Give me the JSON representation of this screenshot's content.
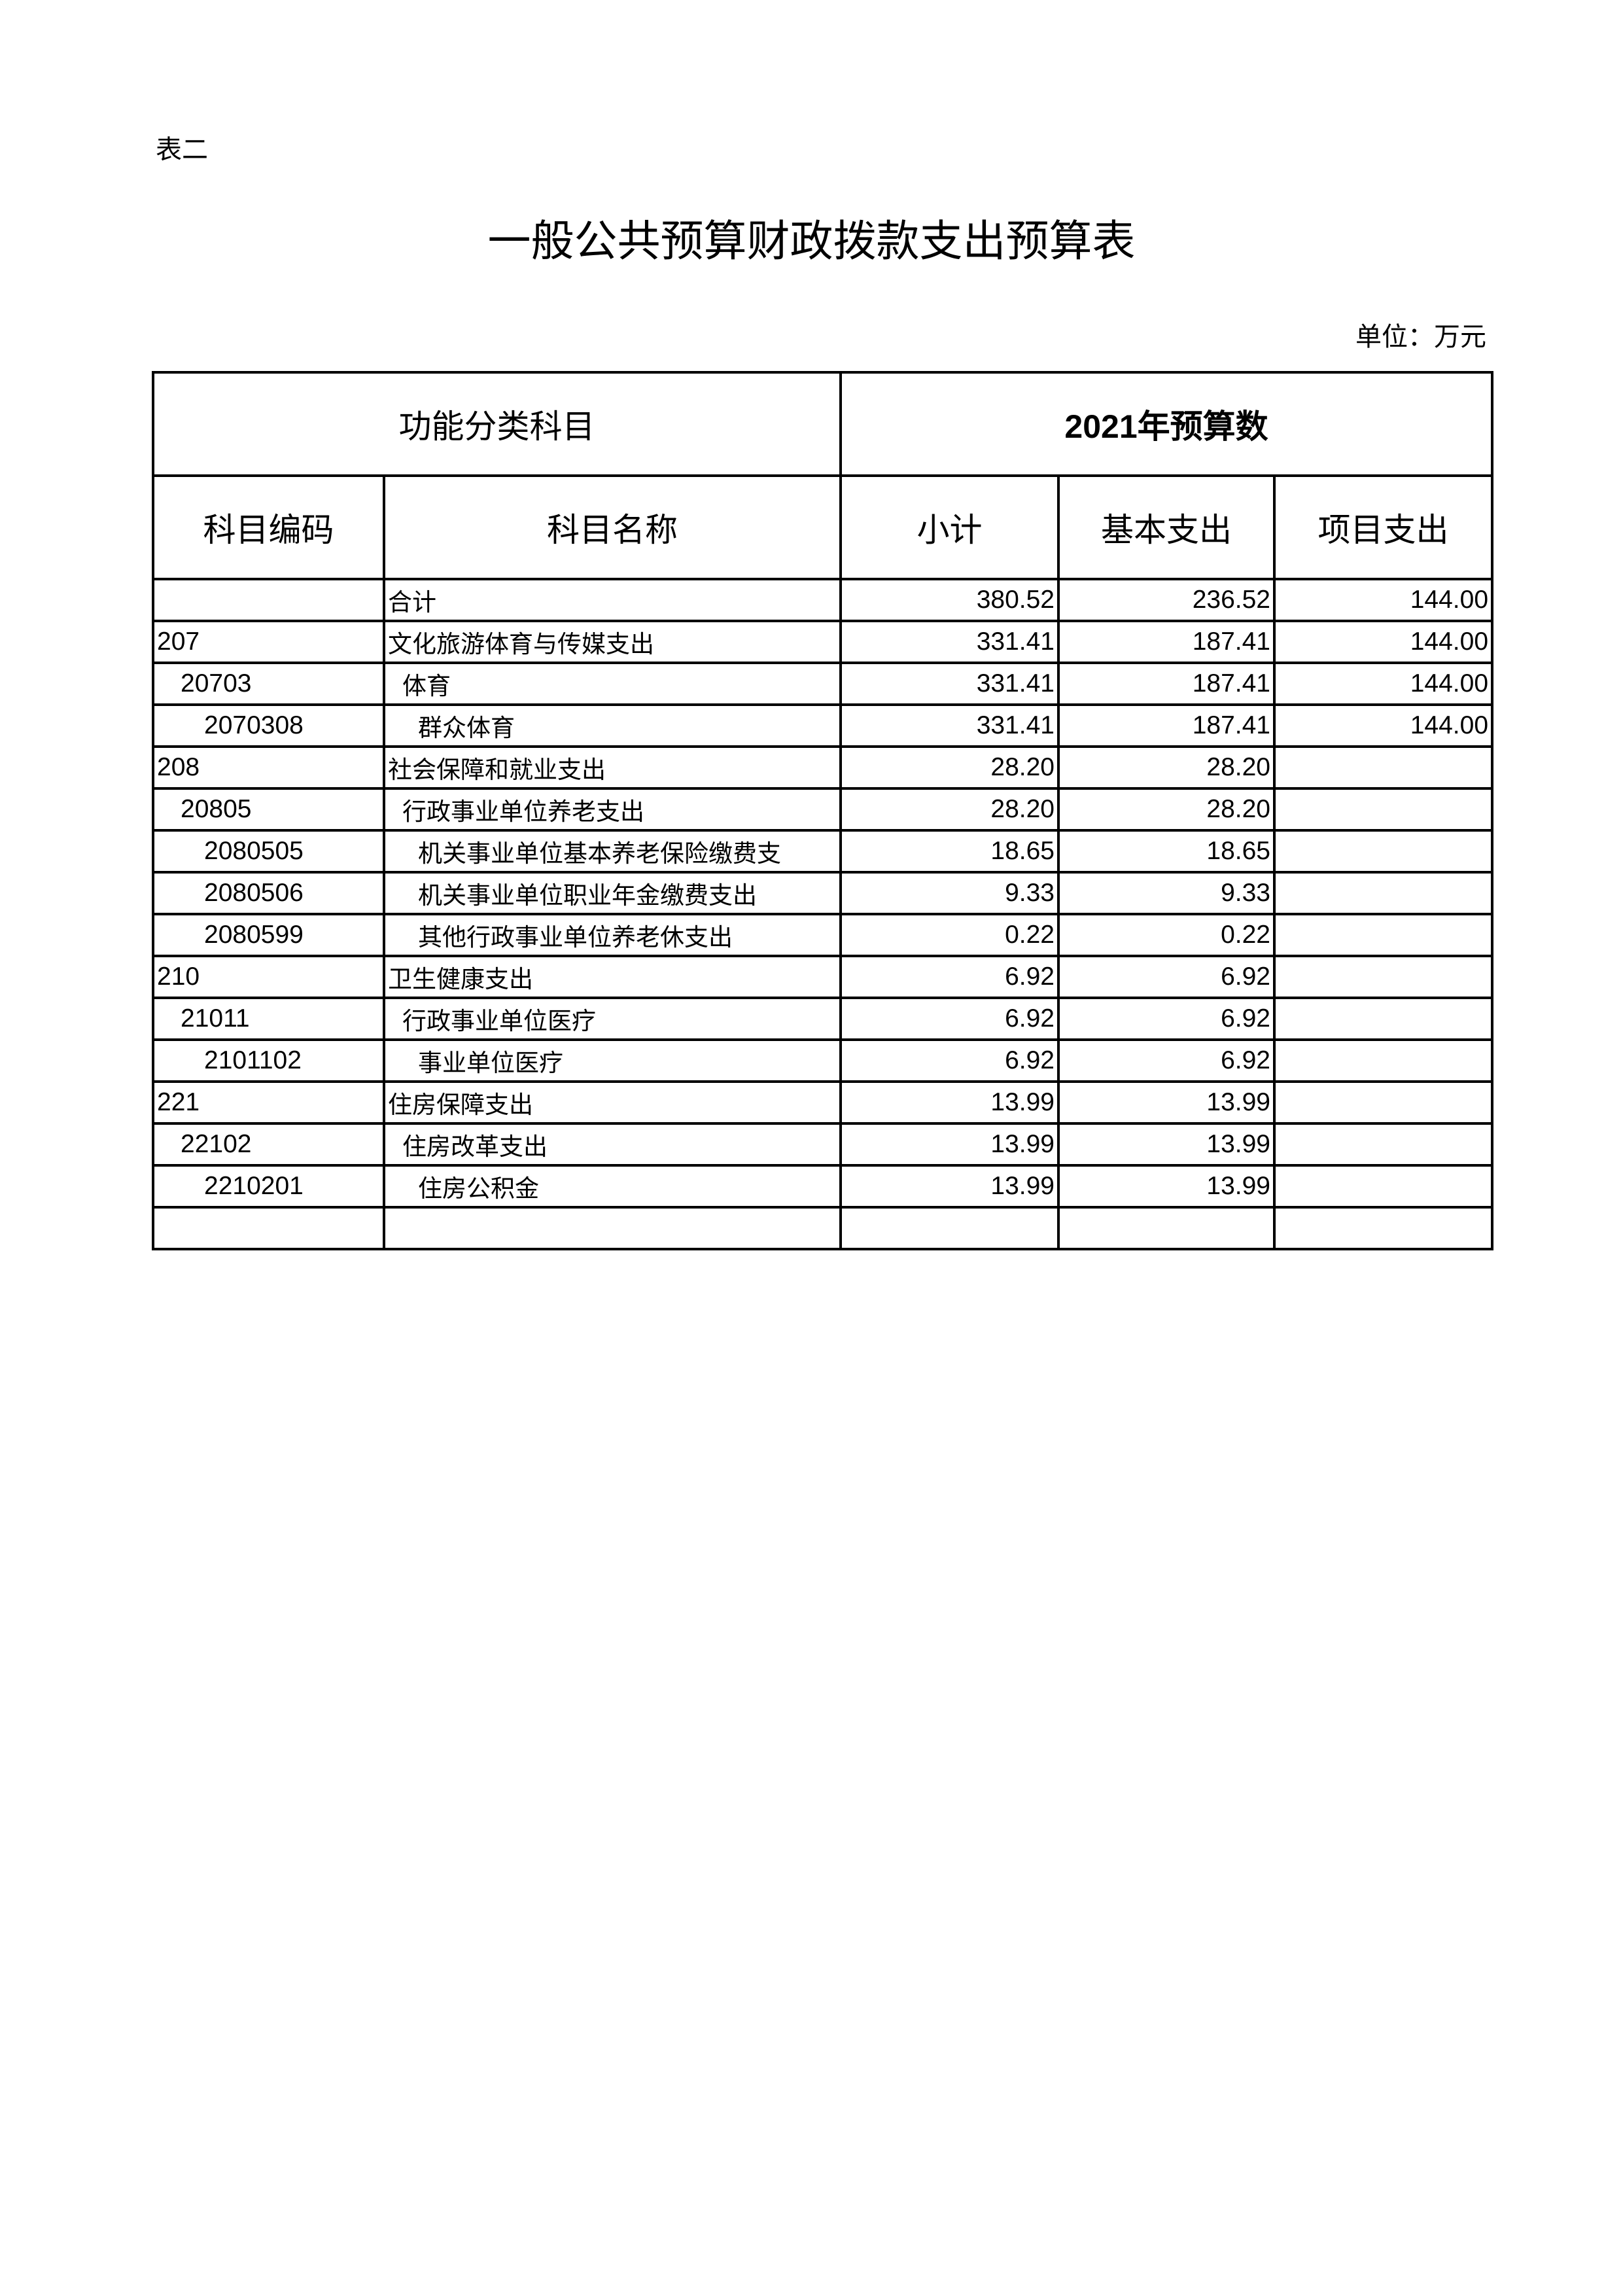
{
  "table_no": "表二",
  "title": "一般公共预算财政拨款支出预算表",
  "unit": "单位：万元",
  "header": {
    "group1": "功能分类科目",
    "group2": "2021年预算数",
    "code": "科目编码",
    "name": "科目名称",
    "subtotal": "小计",
    "basic": "基本支出",
    "project": "项目支出"
  },
  "rows": [
    {
      "code": "",
      "name": "合计",
      "subtotal": "380.52",
      "basic": "236.52",
      "project": "144.00",
      "level": 1
    },
    {
      "code": "207",
      "name": "文化旅游体育与传媒支出",
      "subtotal": "331.41",
      "basic": "187.41",
      "project": "144.00",
      "level": 1
    },
    {
      "code": "20703",
      "name": "体育",
      "subtotal": "331.41",
      "basic": "187.41",
      "project": "144.00",
      "level": 2
    },
    {
      "code": "2070308",
      "name": "群众体育",
      "subtotal": "331.41",
      "basic": "187.41",
      "project": "144.00",
      "level": 3
    },
    {
      "code": "208",
      "name": "社会保障和就业支出",
      "subtotal": "28.20",
      "basic": "28.20",
      "project": "",
      "level": 1
    },
    {
      "code": "20805",
      "name": "行政事业单位养老支出",
      "subtotal": "28.20",
      "basic": "28.20",
      "project": "",
      "level": 2
    },
    {
      "code": "2080505",
      "name": "机关事业单位基本养老保险缴费支",
      "subtotal": "18.65",
      "basic": "18.65",
      "project": "",
      "level": 3
    },
    {
      "code": "2080506",
      "name": "机关事业单位职业年金缴费支出",
      "subtotal": "9.33",
      "basic": "9.33",
      "project": "",
      "level": 3
    },
    {
      "code": "2080599",
      "name": "其他行政事业单位养老休支出",
      "subtotal": "0.22",
      "basic": "0.22",
      "project": "",
      "level": 3
    },
    {
      "code": "210",
      "name": "卫生健康支出",
      "subtotal": "6.92",
      "basic": "6.92",
      "project": "",
      "level": 1
    },
    {
      "code": "21011",
      "name": "行政事业单位医疗",
      "subtotal": "6.92",
      "basic": "6.92",
      "project": "",
      "level": 2
    },
    {
      "code": "2101102",
      "name": "事业单位医疗",
      "subtotal": "6.92",
      "basic": "6.92",
      "project": "",
      "level": 3
    },
    {
      "code": "221",
      "name": "住房保障支出",
      "subtotal": "13.99",
      "basic": "13.99",
      "project": "",
      "level": 1
    },
    {
      "code": "22102",
      "name": "住房改革支出",
      "subtotal": "13.99",
      "basic": "13.99",
      "project": "",
      "level": 2
    },
    {
      "code": "2210201",
      "name": "住房公积金",
      "subtotal": "13.99",
      "basic": "13.99",
      "project": "",
      "level": 3
    },
    {
      "code": "",
      "name": "",
      "subtotal": "",
      "basic": "",
      "project": "",
      "level": 1
    }
  ]
}
